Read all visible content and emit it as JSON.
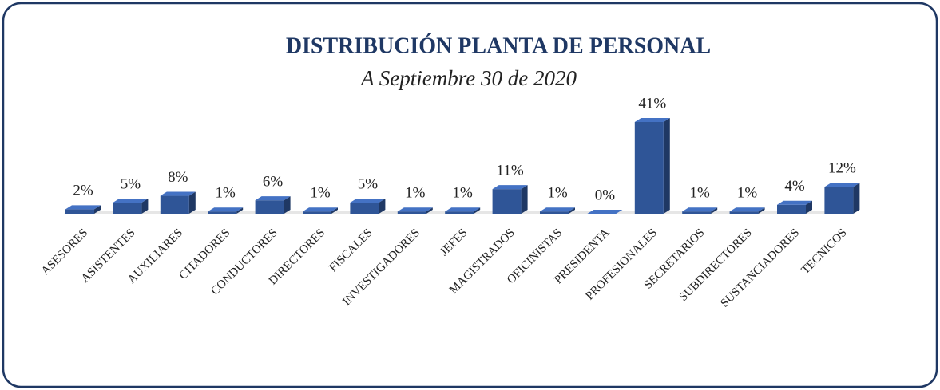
{
  "chart_data": {
    "type": "bar",
    "title": "DISTRIBUCIÓN PLANTA DE PERSONAL",
    "subtitle": "A Septiembre 30 de 2020",
    "categories": [
      "ASESORES",
      "ASISTENTES",
      "AUXILIARES",
      "CITADORES",
      "CONDUCTORES",
      "DIRECTORES",
      "FISCALES",
      "INVESTIGADORES",
      "JEFES",
      "MAGISTRADOS",
      "OFICINISTAS",
      "PRESIDENTA",
      "PROFESIONALES",
      "SECRETARIOS",
      "SUBDIRECTORES",
      "SUSTANCIADORES",
      "TECNICOS"
    ],
    "values": [
      2,
      5,
      8,
      1,
      6,
      1,
      5,
      1,
      1,
      11,
      1,
      0,
      41,
      1,
      1,
      4,
      12
    ],
    "value_labels": [
      "2%",
      "5%",
      "8%",
      "1%",
      "6%",
      "1%",
      "5%",
      "1%",
      "1%",
      "11%",
      "1%",
      "0%",
      "41%",
      "1%",
      "1%",
      "4%",
      "12%"
    ],
    "color": "#2f5597"
  }
}
